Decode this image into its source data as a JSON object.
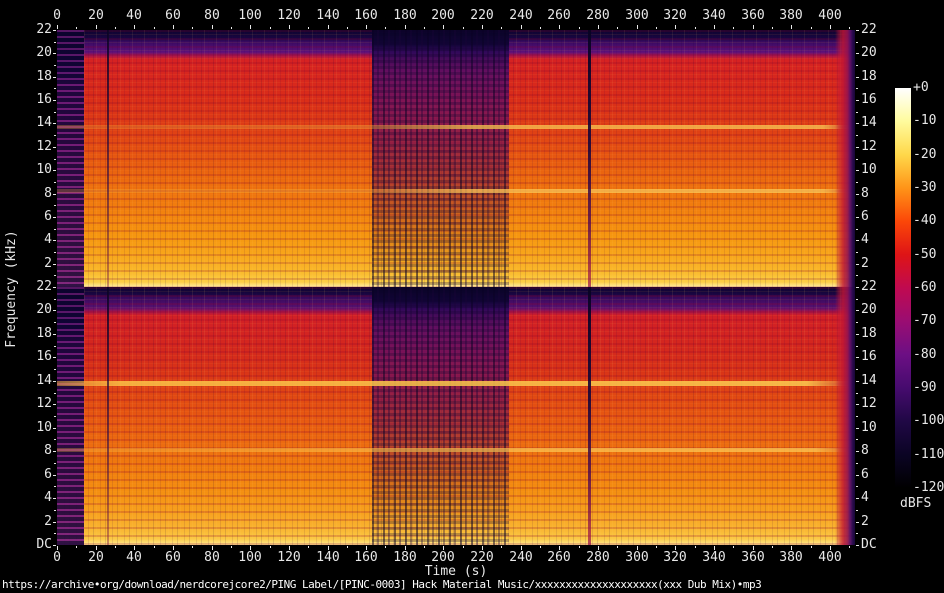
{
  "chart_data": {
    "type": "heatmap",
    "subtype": "audio-spectrogram-stereo",
    "title": "",
    "xlabel": "Time (s)",
    "ylabel": "Frequency (kHz)",
    "x_range_s": [
      0,
      413
    ],
    "x_tick_step_s": 20,
    "x_minor_tick_step_s": 10,
    "x_ticks": [
      0,
      20,
      40,
      60,
      80,
      100,
      120,
      140,
      160,
      180,
      200,
      220,
      240,
      260,
      280,
      300,
      320,
      340,
      360,
      380,
      400
    ],
    "y_range_khz": [
      0,
      22
    ],
    "y_ticks_khz": [
      22,
      20,
      18,
      16,
      14,
      12,
      10,
      8,
      6,
      4,
      2
    ],
    "y_dc_label": "DC",
    "channels": [
      {
        "name": "channel-1",
        "position": "top"
      },
      {
        "name": "channel-2",
        "position": "bottom"
      }
    ],
    "grid": false,
    "legend_position": "right-colorbar",
    "colorbar": {
      "unit": "dBFS",
      "range_db": [
        0,
        -120
      ],
      "tick_labels": [
        "+0",
        "-10",
        "-20",
        "-30",
        "-40",
        "-50",
        "-60",
        "-70",
        "-80",
        "-90",
        "-100",
        "-110",
        "-120"
      ],
      "gradient_stops": [
        {
          "db": 0,
          "color": "#ffffff"
        },
        {
          "db": -10,
          "color": "#fffb9d"
        },
        {
          "db": -20,
          "color": "#ffd84a"
        },
        {
          "db": -30,
          "color": "#ff9418"
        },
        {
          "db": -40,
          "color": "#fb4708"
        },
        {
          "db": -50,
          "color": "#de1416"
        },
        {
          "db": -60,
          "color": "#c00a50"
        },
        {
          "db": -70,
          "color": "#9a0d72"
        },
        {
          "db": -80,
          "color": "#6c0f84"
        },
        {
          "db": -90,
          "color": "#460b6e"
        },
        {
          "db": -100,
          "color": "#200845"
        },
        {
          "db": -110,
          "color": "#0b0424"
        },
        {
          "db": -120,
          "color": "#000000"
        }
      ]
    },
    "features": [
      {
        "name": "lowpass-dark-band",
        "freq_khz": [
          20.5,
          22
        ],
        "level_db": -100,
        "desc": "dark band above ~20.5 kHz on both channels (encoder lowpass)"
      },
      {
        "name": "intro-quiet",
        "time_s": [
          0,
          14
        ],
        "level_db": -85,
        "desc": "dark purple dashed intro block, low energy"
      },
      {
        "name": "transient-gap",
        "time_s": [
          26,
          27
        ],
        "desc": "thin dark vertical line"
      },
      {
        "name": "breakdown-section",
        "time_s": [
          163,
          233
        ],
        "level_db": -70,
        "desc": "purple/magenta quiet section with rhythmic vertical bars"
      },
      {
        "name": "silence-gap",
        "time_s": [
          275,
          276
        ],
        "desc": "dark vertical line across both channels"
      },
      {
        "name": "bright-line-14k",
        "freq_khz": 13.8,
        "level_db": -18,
        "desc": "bright yellow horizontal line, strongest on bottom channel"
      },
      {
        "name": "bright-line-8k",
        "freq_khz": 8.3,
        "level_db": -25,
        "desc": "secondary bright horizontal line"
      },
      {
        "name": "outro-fade",
        "time_s": [
          403,
          413
        ],
        "desc": "energy falls: red band then purple/black at track end"
      },
      {
        "name": "bass-floor",
        "freq_khz": [
          0,
          2
        ],
        "level_db": -10,
        "desc": "bright yellow band of bass energy along the bottom of each channel"
      }
    ]
  },
  "footer": {
    "file_url": "https://archive•org/download/nerdcorejcore2/PING Label/[PINC-0003] Hack Material Music/xxxxxxxxxxxxxxxxxxxx(xxx Dub Mix)•mp3"
  }
}
